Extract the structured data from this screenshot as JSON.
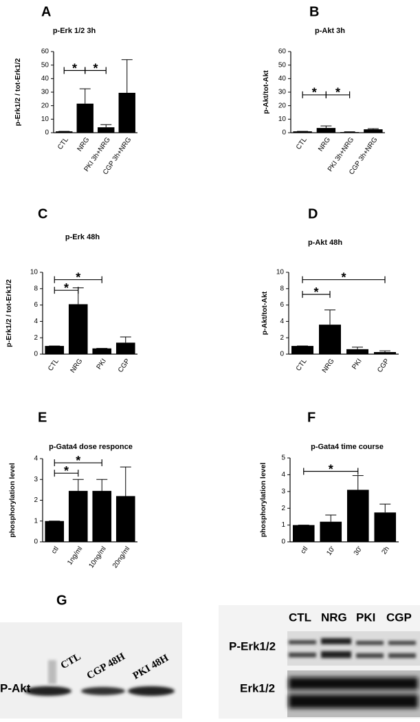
{
  "chart_data": [
    {
      "type": "bar",
      "panel": "A",
      "title": "p-Erk 1/2  3h",
      "ylabel": "p-Erk1/2 / tot-Erk1/2",
      "categories": [
        "CTL",
        "NRG",
        "PKI 3h+NRG",
        "CGP 3h+NRG"
      ],
      "values": [
        1,
        21.5,
        4,
        29.5
      ],
      "errors": [
        0,
        11,
        2,
        24.5
      ],
      "color": "#000000",
      "ylim": [
        0,
        60
      ],
      "yticks": [
        0,
        10,
        20,
        30,
        40,
        50,
        60
      ],
      "significance": [
        {
          "label": "*",
          "between": [
            0,
            1
          ]
        },
        {
          "label": "*",
          "between": [
            1,
            2
          ]
        }
      ]
    },
    {
      "type": "bar",
      "panel": "B",
      "title": "p-Akt 3h",
      "ylabel": "p-Akt/tot-Akt",
      "categories": [
        "CTL",
        "NRG",
        "PKI 3h+NRG",
        "CGP 3h+NRG"
      ],
      "values": [
        1,
        3.5,
        0.5,
        2.5
      ],
      "errors": [
        0,
        1.5,
        0.2,
        0.5
      ],
      "color": "#000000",
      "ylim": [
        0,
        60
      ],
      "yticks": [
        0,
        10,
        20,
        30,
        40,
        50,
        60
      ],
      "significance": [
        {
          "label": "*",
          "between": [
            0,
            1
          ]
        },
        {
          "label": "*",
          "between": [
            1,
            2
          ]
        }
      ]
    },
    {
      "type": "bar",
      "panel": "C",
      "title": "p-Erk 48h",
      "ylabel": "p-Erk1/2 / tot-Erk1/2",
      "categories": [
        "CTL",
        "NRG",
        "PKI",
        "CGP"
      ],
      "values": [
        1,
        6.1,
        0.7,
        1.4
      ],
      "errors": [
        0,
        2,
        0,
        0.7
      ],
      "color": "#000000",
      "ylim": [
        0,
        10
      ],
      "yticks": [
        0,
        2,
        4,
        6,
        8,
        10
      ],
      "significance": [
        {
          "label": "*",
          "between": [
            0,
            1
          ]
        },
        {
          "label": "*",
          "between": [
            0,
            2
          ]
        }
      ]
    },
    {
      "type": "bar",
      "panel": "D",
      "title": "p-Akt 48h",
      "ylabel": "p-Akt/tot-Akt",
      "categories": [
        "CTL",
        "NRG",
        "PKI",
        "CGP"
      ],
      "values": [
        1,
        3.6,
        0.6,
        0.25
      ],
      "errors": [
        0,
        1.8,
        0.25,
        0.15
      ],
      "color": "#000000",
      "ylim": [
        0,
        10
      ],
      "yticks": [
        0,
        2,
        4,
        6,
        8,
        10
      ],
      "significance": [
        {
          "label": "*",
          "between": [
            0,
            1
          ]
        },
        {
          "label": "*",
          "between": [
            0,
            3
          ]
        }
      ]
    },
    {
      "type": "bar",
      "panel": "E",
      "title": "p-Gata4 dose responce",
      "ylabel": "phosphorylation level",
      "categories": [
        "ctl",
        "1ng/ml",
        "10ng/ml",
        "20ng/ml"
      ],
      "values": [
        1,
        2.45,
        2.45,
        2.2
      ],
      "errors": [
        0,
        0.55,
        0.55,
        1.4
      ],
      "color": "#000000",
      "ylim": [
        0,
        4
      ],
      "yticks": [
        0,
        1,
        2,
        3,
        4
      ],
      "significance": [
        {
          "label": "*",
          "between": [
            0,
            1
          ]
        },
        {
          "label": "*",
          "between": [
            0,
            2
          ]
        }
      ]
    },
    {
      "type": "bar",
      "panel": "F",
      "title": "p-Gata4 time course",
      "ylabel": "phosphorylation level",
      "categories": [
        "ctl",
        "10'",
        "30'",
        "2h"
      ],
      "values": [
        1,
        1.2,
        3.1,
        1.75
      ],
      "errors": [
        0,
        0.4,
        0.85,
        0.5
      ],
      "color": "#000000",
      "ylim": [
        0,
        5
      ],
      "yticks": [
        0,
        1,
        2,
        3,
        4,
        5
      ],
      "significance": [
        {
          "label": "*",
          "between": [
            0,
            2
          ]
        }
      ]
    }
  ],
  "blot_panel": {
    "panel": "G",
    "left": {
      "lanes": [
        "CTL",
        "CGP 48H",
        "PKI 48H"
      ],
      "row": "P-Akt"
    },
    "right": {
      "lanes": [
        "CTL",
        "NRG",
        "PKI",
        "CGP"
      ],
      "rows": [
        "P-Erk1/2",
        "Erk1/2"
      ]
    }
  }
}
